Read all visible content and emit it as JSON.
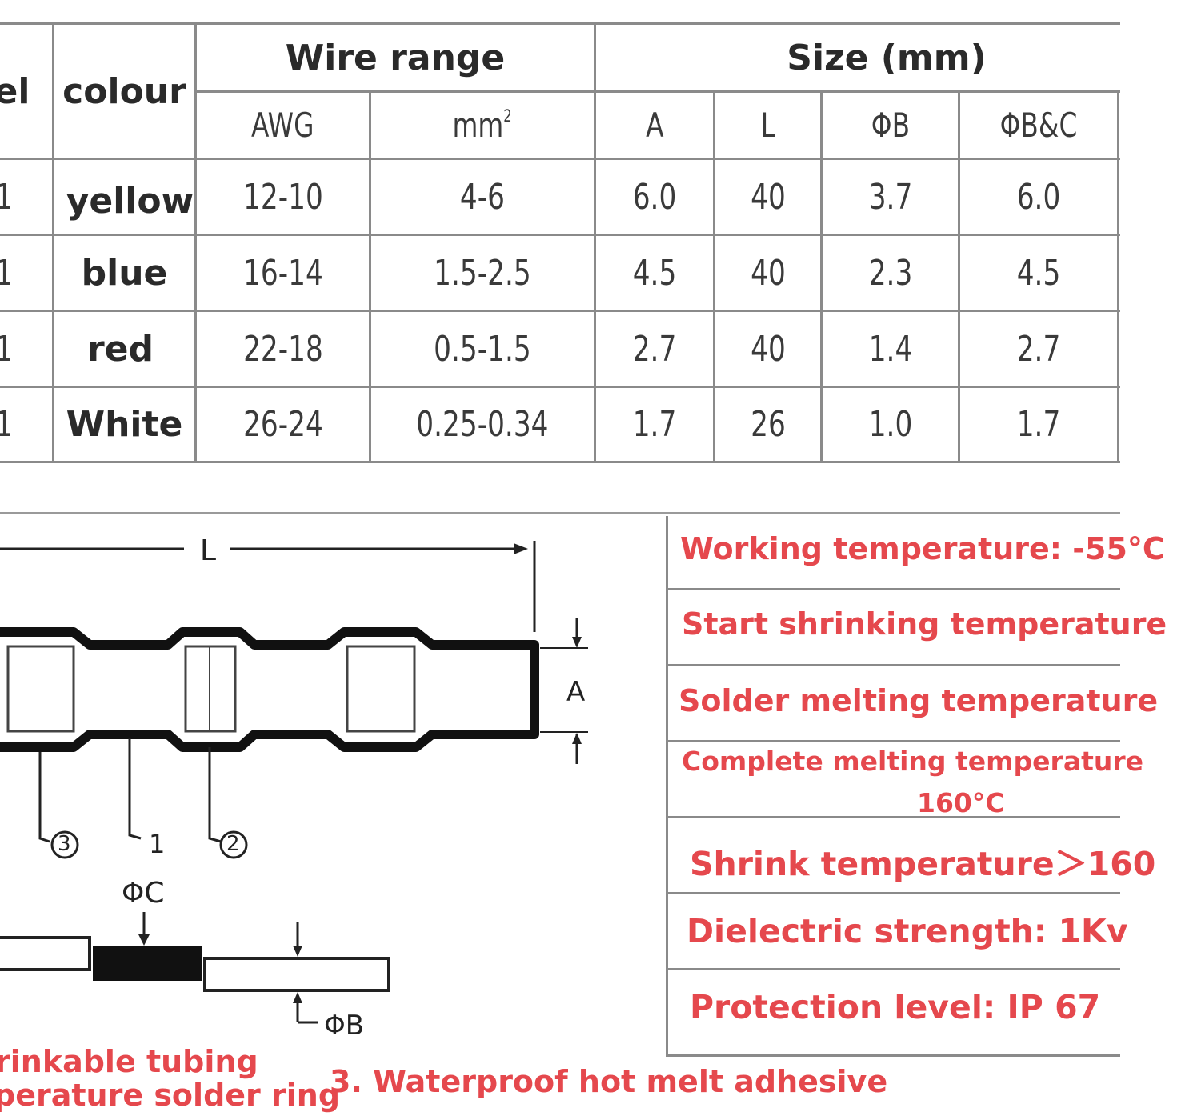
{
  "table": {
    "headers": {
      "model": "el",
      "colour": "colour",
      "wire_range": "Wire range",
      "size": "Size (mm)",
      "awg": "AWG",
      "mm2": "mm",
      "mm2_sup": "2",
      "a": "A",
      "l": "L",
      "phi_b": "ΦB",
      "phi_bc": "ΦB&C"
    },
    "rows": [
      {
        "model": "1",
        "colour": "yellow",
        "awg": "12-10",
        "mm2": "4-6",
        "a": "6.0",
        "l": "40",
        "phi_b": "3.7",
        "phi_bc": "6.0"
      },
      {
        "model": "1",
        "colour": "blue",
        "awg": "16-14",
        "mm2": "1.5-2.5",
        "a": "4.5",
        "l": "40",
        "phi_b": "2.3",
        "phi_bc": "4.5"
      },
      {
        "model": "1",
        "colour": "red",
        "awg": "22-18",
        "mm2": "0.5-1.5",
        "a": "2.7",
        "l": "40",
        "phi_b": "1.4",
        "phi_bc": "2.7"
      },
      {
        "model": "1",
        "colour": "White",
        "awg": "26-24",
        "mm2": "0.25-0.34",
        "a": "1.7",
        "l": "26",
        "phi_b": "1.0",
        "phi_bc": "1.7"
      }
    ]
  },
  "diagram": {
    "dim_l": "L",
    "dim_a": "A",
    "part_3": "3",
    "part_1": "1",
    "part_2": "2",
    "phi_c": "ΦC",
    "phi_b": "ΦB"
  },
  "specs": {
    "working_temp": "Working temperature: -55°C",
    "start_shrink": "Start shrinking temperature",
    "solder_melt": "Solder melting temperature",
    "complete_melt_1": "Complete melting temperature",
    "complete_melt_2": "160°C",
    "shrink_temp": "Shrink temperature＞160",
    "dielectric": "Dielectric strength: 1Kv",
    "protection": "Protection level: IP 67"
  },
  "captions": {
    "line1": "rinkable tubing",
    "line2": "perature solder ring",
    "line3": "3. Waterproof hot melt adhesive"
  },
  "colors": {
    "accent_red": "#e5484d",
    "grid": "#8a8a8a"
  }
}
